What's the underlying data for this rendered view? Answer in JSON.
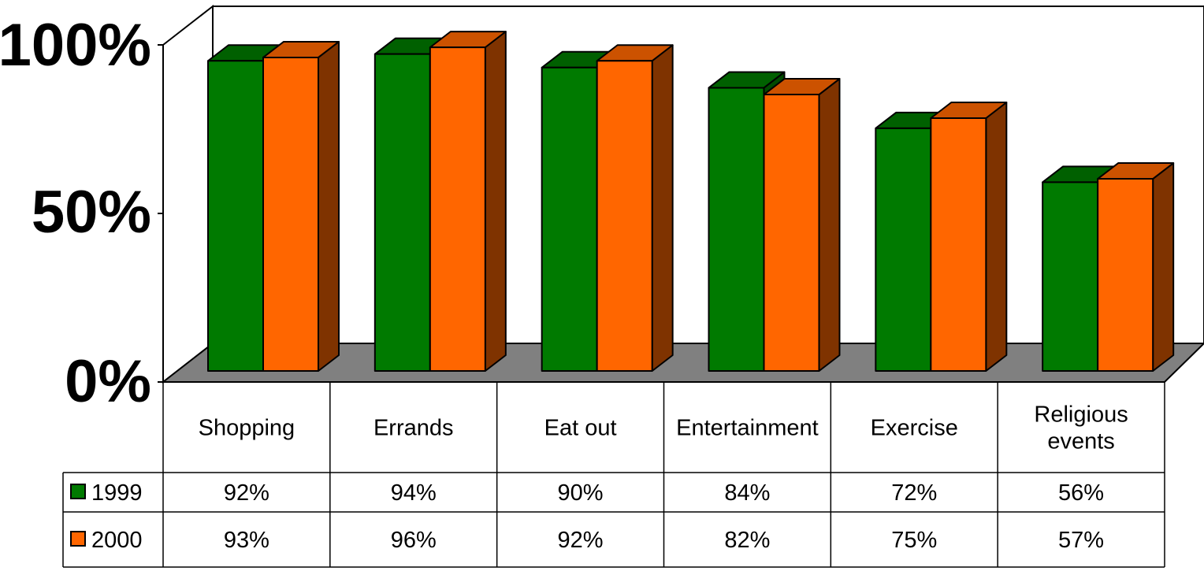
{
  "chart_data": {
    "type": "bar",
    "title": "",
    "xlabel": "",
    "ylabel": "",
    "ylim": [
      0,
      100
    ],
    "y_ticks": [
      "0%",
      "50%",
      "100%"
    ],
    "grid": false,
    "three_d": true,
    "legend_placement": "left of data table",
    "categories": [
      "Shopping",
      "Errands",
      "Eat out",
      "Entertainment",
      "Exercise",
      "Religious events"
    ],
    "category_lines": [
      [
        "Shopping"
      ],
      [
        "Errands"
      ],
      [
        "Eat out"
      ],
      [
        "Entertainment"
      ],
      [
        "Exercise"
      ],
      [
        "Religious",
        "events"
      ]
    ],
    "series": [
      {
        "name": "1999",
        "values": [
          92,
          94,
          90,
          84,
          72,
          56
        ],
        "labels": [
          "92%",
          "94%",
          "90%",
          "84%",
          "72%",
          "56%"
        ],
        "color": "#007a00",
        "top_color": "#006000",
        "side_color": "#004a00"
      },
      {
        "name": "2000",
        "values": [
          93,
          96,
          92,
          82,
          75,
          57
        ],
        "labels": [
          "93%",
          "96%",
          "92%",
          "82%",
          "75%",
          "57%"
        ],
        "color": "#ff6600",
        "top_color": "#cc5200",
        "side_color": "#7f3300"
      }
    ],
    "floor_color": "#808080"
  }
}
